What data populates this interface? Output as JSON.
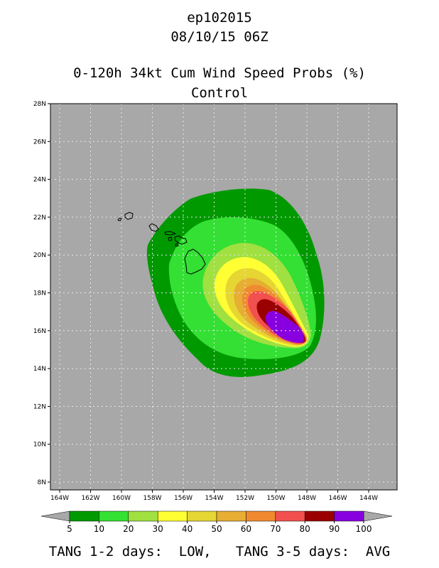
{
  "header": {
    "storm_id": "ep102015",
    "datetime": "08/10/15 06Z",
    "product": "0-120h 34kt Cum Wind Speed Probs (%)",
    "run": "Control"
  },
  "map": {
    "lat_labels": [
      "28N",
      "26N",
      "24N",
      "22N",
      "20N",
      "18N",
      "16N",
      "14N",
      "12N",
      "10N",
      "8N"
    ],
    "lon_labels": [
      "164W",
      "162W",
      "160W",
      "158W",
      "156W",
      "154W",
      "152W",
      "150W",
      "148W",
      "146W",
      "144W"
    ],
    "background_color": "#a8a8a8",
    "grid_color": "#e8e8e8"
  },
  "colorbar": {
    "labels": [
      "5",
      "10",
      "20",
      "30",
      "40",
      "50",
      "60",
      "70",
      "80",
      "90",
      "100"
    ],
    "colors": [
      "#009900",
      "#33e033",
      "#a0e040",
      "#ffff33",
      "#e6d633",
      "#e6ae33",
      "#f08a30",
      "#f24f4f",
      "#9b0000",
      "#8800e0"
    ]
  },
  "footer": {
    "text": "TANG 1-2 days:  LOW,   TANG 3-5 days:  AVG"
  }
}
